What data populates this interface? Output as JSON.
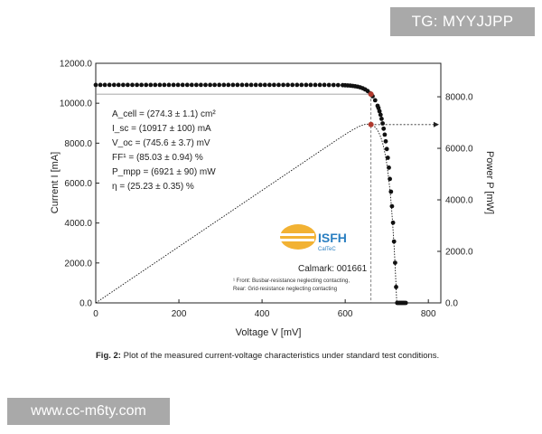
{
  "watermark_top": "TG: MYYJJPP",
  "watermark_bottom": "www.cc-m6ty.com",
  "chart_data": {
    "type": "scatter",
    "xlabel": "Voltage V [mV]",
    "ylabel_left": "Current I [mA]",
    "ylabel_right": "Power P [mW]",
    "xlim": [
      0,
      830
    ],
    "ylim_left": [
      0,
      12000
    ],
    "ylim_right": [
      0,
      9300
    ],
    "x_ticks": [
      "0",
      "200",
      "400",
      "600",
      "800"
    ],
    "y_left_ticks": [
      "0.0",
      "2000.0",
      "4000.0",
      "6000.0",
      "8000.0",
      "10000.0",
      "12000.0"
    ],
    "y_right_ticks": [
      "0.0",
      "2000.0",
      "4000.0",
      "6000.0",
      "8000.0"
    ],
    "params": {
      "isc": 10917,
      "voc": 745.6,
      "vmpp": 662,
      "impp": 10455,
      "pmpp": 6921
    },
    "annotations": [
      "A_cell = (274.3 ± 1.1) cm²",
      "I_sc = (10917 ± 100) mA",
      "V_oc = (745.6 ± 3.7) mV",
      "FF¹ = (85.03 ± 0.94) %",
      "P_mpp = (6921 ± 90) mW",
      "η = (25.23 ± 0.35) %"
    ],
    "logo_text": "ISFH",
    "logo_subtext": "CalTeC",
    "calmark": "Calmark: 001661",
    "footnote_line1": "¹ Front: Busbar-resistance neglecting contacting,",
    "footnote_line2": "Rear: Grid-resistance neglecting contacting",
    "caption_bold": "Fig. 2:",
    "caption_text": " Plot of the measured current-voltage characteristics under standard test conditions.",
    "grid": false,
    "series": [
      {
        "name": "",
        "color": "#111111"
      },
      {
        "name": "",
        "color": "#111111"
      }
    ],
    "mpp_color": "#b03a2e"
  }
}
